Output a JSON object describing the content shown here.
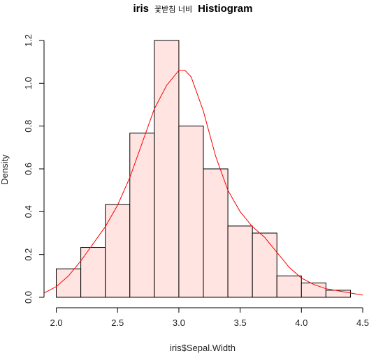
{
  "chart_data": {
    "type": "bar",
    "title_parts": [
      "iris",
      "꽃받침 너비",
      "Histiogram"
    ],
    "xlabel": "iris$Sepal.Width",
    "ylabel": "Density",
    "xlim": [
      1.9,
      4.5
    ],
    "ylim": [
      0,
      1.2
    ],
    "x_ticks": [
      2.0,
      2.5,
      3.0,
      3.5,
      4.0,
      4.5
    ],
    "x_tick_labels": [
      "2.0",
      "2.5",
      "3.0",
      "3.5",
      "4.0",
      "4.5"
    ],
    "y_ticks": [
      0.0,
      0.2,
      0.4,
      0.6,
      0.8,
      1.0,
      1.2
    ],
    "y_tick_labels": [
      "0.0",
      "0.2",
      "0.4",
      "0.6",
      "0.8",
      "1.0",
      "1.2"
    ],
    "bins": [
      {
        "x0": 2.0,
        "x1": 2.2,
        "density": 0.133
      },
      {
        "x0": 2.2,
        "x1": 2.4,
        "density": 0.233
      },
      {
        "x0": 2.4,
        "x1": 2.6,
        "density": 0.433
      },
      {
        "x0": 2.6,
        "x1": 2.8,
        "density": 0.767
      },
      {
        "x0": 2.8,
        "x1": 3.0,
        "density": 1.2
      },
      {
        "x0": 3.0,
        "x1": 3.2,
        "density": 0.8
      },
      {
        "x0": 3.2,
        "x1": 3.4,
        "density": 0.6
      },
      {
        "x0": 3.4,
        "x1": 3.6,
        "density": 0.333
      },
      {
        "x0": 3.6,
        "x1": 3.8,
        "density": 0.3
      },
      {
        "x0": 3.8,
        "x1": 4.0,
        "density": 0.1
      },
      {
        "x0": 4.0,
        "x1": 4.2,
        "density": 0.067
      },
      {
        "x0": 4.2,
        "x1": 4.4,
        "density": 0.033
      }
    ],
    "density_curve": {
      "x": [
        1.9,
        2.0,
        2.1,
        2.2,
        2.3,
        2.4,
        2.5,
        2.6,
        2.7,
        2.8,
        2.9,
        3.0,
        3.05,
        3.1,
        3.2,
        3.3,
        3.4,
        3.5,
        3.6,
        3.7,
        3.8,
        3.9,
        4.0,
        4.1,
        4.2,
        4.3,
        4.4,
        4.5
      ],
      "y": [
        0.02,
        0.05,
        0.1,
        0.17,
        0.25,
        0.33,
        0.43,
        0.56,
        0.72,
        0.88,
        0.99,
        1.06,
        1.06,
        1.03,
        0.87,
        0.66,
        0.5,
        0.4,
        0.33,
        0.28,
        0.21,
        0.14,
        0.09,
        0.06,
        0.04,
        0.03,
        0.02,
        0.01
      ]
    },
    "colors": {
      "bar_fill": "#ffe4e1",
      "bar_stroke": "#000000",
      "curve": "#ff0000"
    }
  }
}
